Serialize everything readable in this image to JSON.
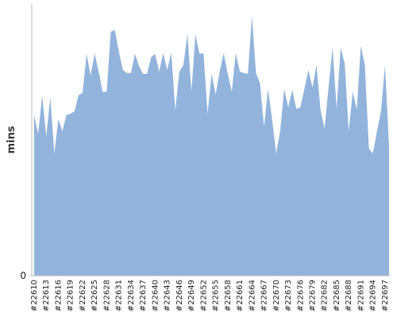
{
  "chart_data": {
    "type": "area",
    "y_label": "mins",
    "color": "#92b3dc",
    "categories": [
      "#22610",
      null,
      null,
      "#22613",
      null,
      null,
      "#22616",
      null,
      null,
      "#22619",
      null,
      null,
      "#22622",
      null,
      null,
      "#22625",
      null,
      null,
      "#22628",
      null,
      null,
      "#22631",
      null,
      null,
      "#22634",
      null,
      null,
      "#22637",
      null,
      null,
      "#22640",
      null,
      null,
      "#22643",
      null,
      null,
      "#22646",
      null,
      null,
      "#22649",
      null,
      null,
      "#22652",
      null,
      null,
      "#22655",
      null,
      null,
      "#22658",
      null,
      null,
      "#22661",
      null,
      null,
      "#22664",
      null,
      null,
      "#22667",
      null,
      null,
      "#22670",
      null,
      null,
      "#22673",
      null,
      null,
      "#22676",
      null,
      null,
      "#22679",
      null,
      null,
      "#22682",
      null,
      null,
      "#22685",
      null,
      null,
      "#22688",
      null,
      null,
      "#22691",
      null,
      null,
      "#22694",
      null,
      null,
      "#22697",
      null
    ],
    "values": [
      59.1,
      52.3,
      66.4,
      51.2,
      65.8,
      45.0,
      57.6,
      53.2,
      59.1,
      59.6,
      60.5,
      66.4,
      67.3,
      81.6,
      73.7,
      81.9,
      75.1,
      67.5,
      67.8,
      89.8,
      90.4,
      82.5,
      75.7,
      74.6,
      74.6,
      81.6,
      77.2,
      74.3,
      74.3,
      80.4,
      81.6,
      75.1,
      81.9,
      75.7,
      82.2,
      60.8,
      75.1,
      77.5,
      88.9,
      67.8,
      88.9,
      81.6,
      81.9,
      59.6,
      74.3,
      66.7,
      75.1,
      81.9,
      74.3,
      67.8,
      81.9,
      75.1,
      74.6,
      74.3,
      95.6,
      74.6,
      70.8,
      54.7,
      68.7,
      57.6,
      45.0,
      53.2,
      68.7,
      62.0,
      68.4,
      61.4,
      62.0,
      68.7,
      75.7,
      69.3,
      77.5,
      61.1,
      54.1,
      69.3,
      83.9,
      61.4,
      83.9,
      78.1,
      53.2,
      67.8,
      61.1,
      84.5,
      77.5,
      46.8,
      45.0,
      53.2,
      60.5,
      77.5,
      47.4
    ],
    "ylim": [
      0,
      100
    ],
    "yticks": [
      0
    ]
  }
}
